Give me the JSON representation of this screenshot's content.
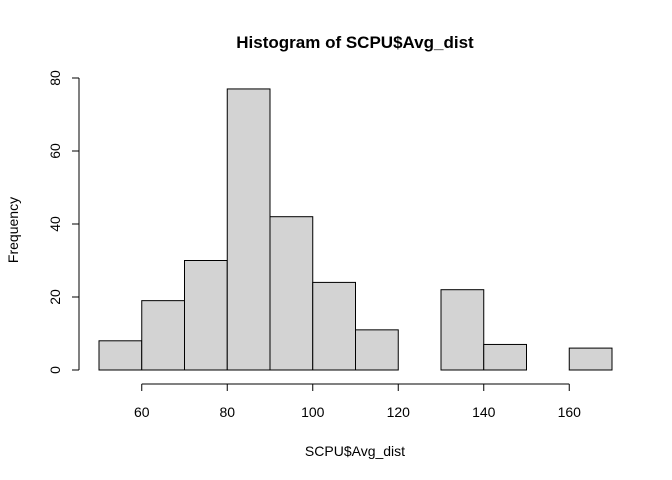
{
  "chart_data": {
    "type": "bar",
    "title": "Histogram of SCPU$Avg_dist",
    "xlabel": "SCPU$Avg_dist",
    "ylabel": "Frequency",
    "bins": [
      {
        "start": 50,
        "end": 60,
        "count": 8
      },
      {
        "start": 60,
        "end": 70,
        "count": 19
      },
      {
        "start": 70,
        "end": 80,
        "count": 30
      },
      {
        "start": 80,
        "end": 90,
        "count": 77
      },
      {
        "start": 90,
        "end": 100,
        "count": 42
      },
      {
        "start": 100,
        "end": 110,
        "count": 24
      },
      {
        "start": 110,
        "end": 120,
        "count": 11
      },
      {
        "start": 120,
        "end": 130,
        "count": 0
      },
      {
        "start": 130,
        "end": 140,
        "count": 22
      },
      {
        "start": 140,
        "end": 150,
        "count": 7
      },
      {
        "start": 150,
        "end": 160,
        "count": 0
      },
      {
        "start": 160,
        "end": 170,
        "count": 6
      }
    ],
    "x_ticks": [
      60,
      80,
      100,
      120,
      140,
      160
    ],
    "y_ticks": [
      0,
      20,
      40,
      60,
      80
    ],
    "xlim": [
      50,
      170
    ],
    "ylim": [
      0,
      80
    ],
    "grid": false
  }
}
